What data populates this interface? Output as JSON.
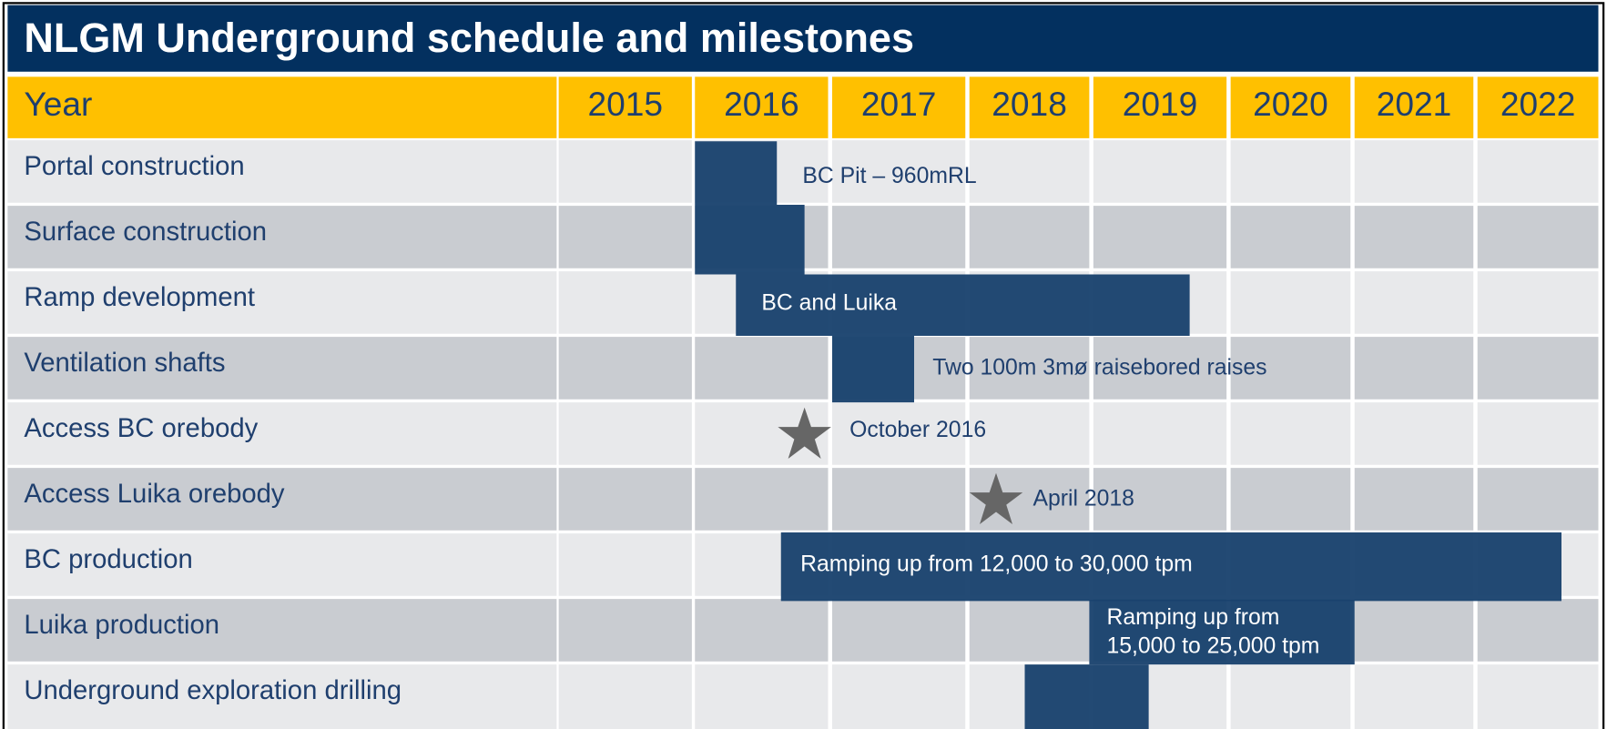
{
  "title": "NLGM Underground schedule and milestones",
  "header": {
    "label": "Year",
    "years": [
      "2015",
      "2016",
      "2017",
      "2018",
      "2019",
      "2020",
      "2021",
      "2022"
    ]
  },
  "rows": [
    "Portal construction",
    "Surface construction",
    "Ramp development",
    "Ventilation shafts",
    "Access BC orebody",
    "Access Luika orebody",
    "BC production",
    "Luika production",
    "Underground exploration drilling"
  ],
  "annotations": {
    "portal": "BC Pit – 960mRL",
    "ramp": "BC and Luika",
    "ventilation": "Two 100m 3mø raisebored raises",
    "access_bc": "October 2016",
    "access_luika": "April 2018",
    "bc_production": "Ramping up from 12,000 to 30,000 tpm",
    "luika_production": [
      "Ramping up from",
      "15,000 to 25,000 tpm"
    ]
  }
}
